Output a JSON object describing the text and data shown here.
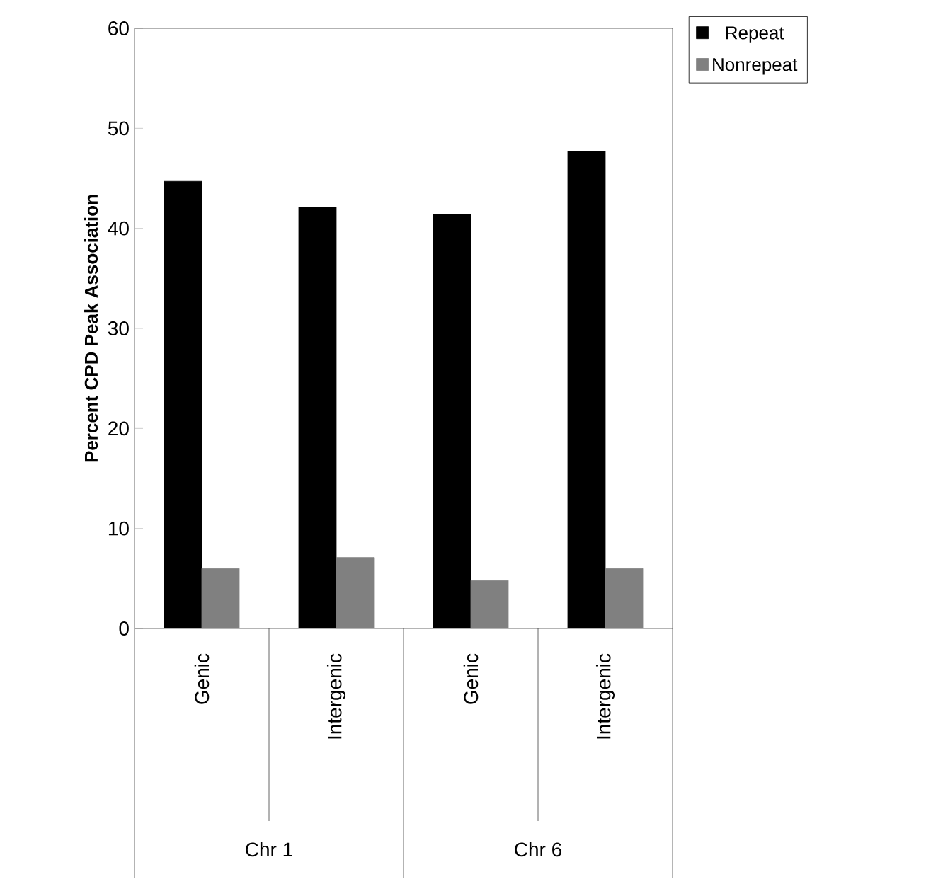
{
  "chart_data": {
    "type": "bar",
    "ylabel": "Percent CPD Peak Association",
    "categories": [
      "Genic",
      "Intergenic",
      "Genic",
      "Intergenic"
    ],
    "series": [
      {
        "name": "Repeat",
        "color": "#000000",
        "values": [
          44.7,
          42.1,
          41.4,
          47.7
        ]
      },
      {
        "name": "Nonrepeat",
        "color": "#808080",
        "values": [
          6.0,
          7.1,
          4.8,
          6.0
        ]
      }
    ],
    "ylim": [
      0,
      60
    ],
    "yticks": [
      0,
      10,
      20,
      30,
      40,
      50,
      60
    ],
    "legend": "top right",
    "grid": false,
    "annotations": [
      "Chr 1",
      "Chr 6"
    ]
  }
}
